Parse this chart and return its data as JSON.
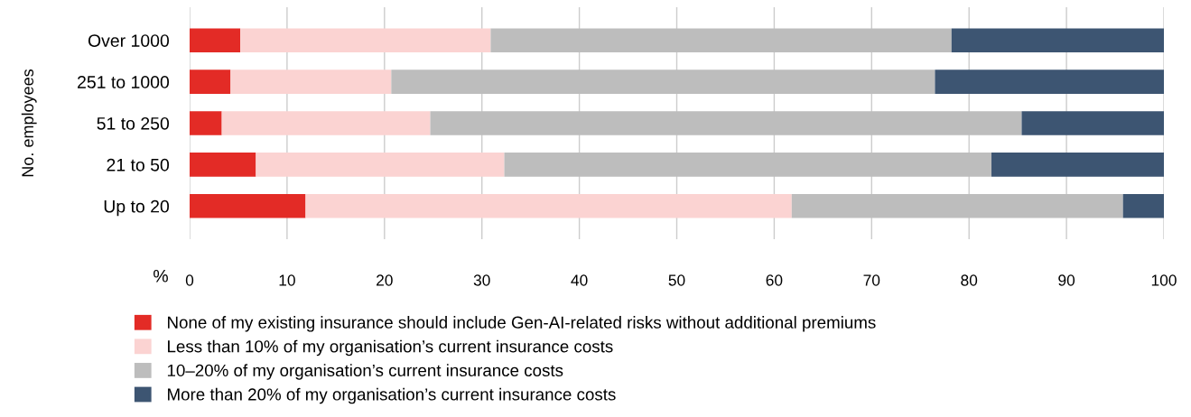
{
  "chart_data": {
    "type": "bar",
    "orientation": "horizontal",
    "stacked": true,
    "ylabel": "No. employees",
    "xlabel": "%",
    "categories": [
      "Over 1000",
      "251 to 1000",
      "51 to 250",
      "21 to 50",
      "Up to 20"
    ],
    "series": [
      {
        "name": "None of my existing insurance should include Gen-AI-related risks without additional premiums",
        "color": "#e32b26",
        "values": [
          5.2,
          4.2,
          3.3,
          6.8,
          11.9
        ]
      },
      {
        "name": "Less than 10% of my organisation’s current insurance costs",
        "color": "#fbd3d2",
        "values": [
          25.7,
          16.5,
          21.4,
          25.5,
          49.9
        ]
      },
      {
        "name": "10–20% of my organisation’s current insurance costs",
        "color": "#bdbdbd",
        "values": [
          47.3,
          55.8,
          60.7,
          50.0,
          34.0
        ]
      },
      {
        "name": "More than 20% of my organisation’s current insurance costs",
        "color": "#3d5572",
        "values": [
          21.8,
          23.5,
          14.6,
          17.7,
          4.2
        ]
      }
    ],
    "xlim": [
      0,
      100
    ],
    "xticks": [
      0,
      10,
      20,
      30,
      40,
      50,
      60,
      70,
      80,
      90,
      100
    ],
    "grid": "x",
    "legend": "bottom"
  }
}
